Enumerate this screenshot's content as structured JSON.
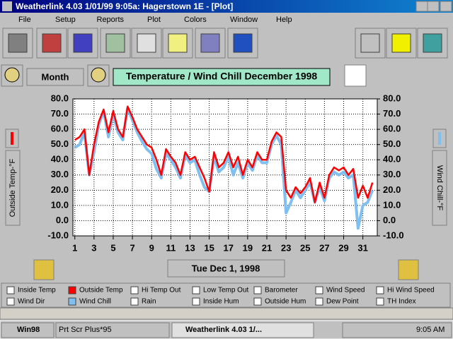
{
  "window": {
    "title": "Weatherlink 4.03   1/01/99   9:05a: Hagerstown 1E - [Plot]"
  },
  "menu": [
    "File",
    "Setup",
    "Reports",
    "Plot",
    "Colors",
    "Window",
    "Help"
  ],
  "controls": {
    "period": "Month",
    "date": "Tue Dec 1, 1998"
  },
  "options": [
    "Inside Temp",
    "Hi Temp Out",
    "Low Temp Out",
    "Barometer",
    "Wind Speed",
    "Hi Wind Speed",
    "Wind Dir",
    "Rain",
    "Inside Hum",
    "Outside Hum",
    "Dew Point",
    "TH Index"
  ],
  "taskbar": {
    "start": "Win98",
    "tasks": [
      "Prt Scr Plus*95",
      "Weatherlink 4.03   1/..."
    ],
    "clock": "9:05 AM"
  },
  "chart_data": {
    "type": "line",
    "title": "Temperature / Wind Chill  December  1998",
    "y_label": "Outside Temp-°F",
    "y2_label": "Wind Chill-°F",
    "x": [
      1,
      1.5,
      2,
      2.5,
      3,
      3.5,
      4,
      4.5,
      5,
      5.5,
      6,
      6.5,
      7,
      7.5,
      8,
      8.5,
      9,
      9.5,
      10,
      10.5,
      11,
      11.5,
      12,
      12.5,
      13,
      13.5,
      14,
      14.5,
      15,
      15.5,
      16,
      16.5,
      17,
      17.5,
      18,
      18.5,
      19,
      19.5,
      20,
      20.5,
      21,
      21.5,
      22,
      22.5,
      23,
      23.5,
      24,
      24.5,
      25,
      25.5,
      26,
      26.5,
      27,
      27.5,
      28,
      28.5,
      29,
      29.5,
      30,
      30.5,
      31,
      31.5,
      32
    ],
    "series": [
      {
        "name": "Wind Chill",
        "color": "#80c0f0",
        "axis": "y2",
        "values": [
          48,
          50,
          58,
          30,
          45,
          63,
          72,
          55,
          70,
          58,
          53,
          74,
          66,
          58,
          52,
          47,
          44,
          34,
          28,
          44,
          40,
          35,
          28,
          43,
          38,
          40,
          30,
          22,
          19,
          42,
          32,
          35,
          42,
          30,
          38,
          28,
          38,
          33,
          43,
          38,
          38,
          50,
          56,
          50,
          5,
          12,
          20,
          15,
          20,
          25,
          12,
          22,
          13,
          28,
          32,
          30,
          32,
          28,
          30,
          -5,
          10,
          12,
          20
        ]
      },
      {
        "name": "Outside Temp",
        "color": "#ff0000",
        "values": [
          53,
          55,
          60,
          30,
          50,
          65,
          73,
          58,
          72,
          60,
          55,
          75,
          68,
          60,
          55,
          50,
          48,
          40,
          30,
          47,
          42,
          38,
          30,
          45,
          40,
          42,
          35,
          28,
          19,
          45,
          35,
          38,
          45,
          35,
          42,
          30,
          40,
          35,
          45,
          40,
          40,
          52,
          58,
          55,
          20,
          15,
          22,
          18,
          22,
          28,
          12,
          25,
          15,
          30,
          35,
          33,
          35,
          30,
          34,
          15,
          23,
          15,
          25
        ]
      }
    ],
    "xlim": [
      0.8,
      32.5
    ],
    "xticks": [
      1,
      3,
      5,
      7,
      9,
      11,
      13,
      15,
      17,
      19,
      21,
      23,
      25,
      27,
      29,
      31
    ],
    "ylim": [
      -10,
      80
    ],
    "yticks": [
      {
        "value": 80,
        "label": "80.0"
      },
      {
        "value": 70,
        "label": "70.0"
      },
      {
        "value": 60,
        "label": "60.0"
      },
      {
        "value": 50,
        "label": "50.0"
      },
      {
        "value": 40,
        "label": "40.0"
      },
      {
        "value": 30,
        "label": "30.0"
      },
      {
        "value": 20,
        "label": "20.0"
      },
      {
        "value": 10,
        "label": "10.0"
      },
      {
        "value": 0,
        "label": "0.0"
      },
      {
        "value": -10,
        "label": "-10.0"
      }
    ],
    "y2lim": [
      -10,
      80
    ],
    "y2ticks": [
      {
        "value": 80,
        "label": "80.0"
      },
      {
        "value": 70,
        "label": "70.0"
      },
      {
        "value": 60,
        "label": "60.0"
      },
      {
        "value": 50,
        "label": "50.0"
      },
      {
        "value": 40,
        "label": "40.0"
      },
      {
        "value": 30,
        "label": "30.0"
      },
      {
        "value": 20,
        "label": "20.0"
      },
      {
        "value": 10,
        "label": "10.0"
      },
      {
        "value": 0,
        "label": "0.0"
      },
      {
        "value": -10,
        "label": "-10.0"
      }
    ],
    "grid": true
  }
}
